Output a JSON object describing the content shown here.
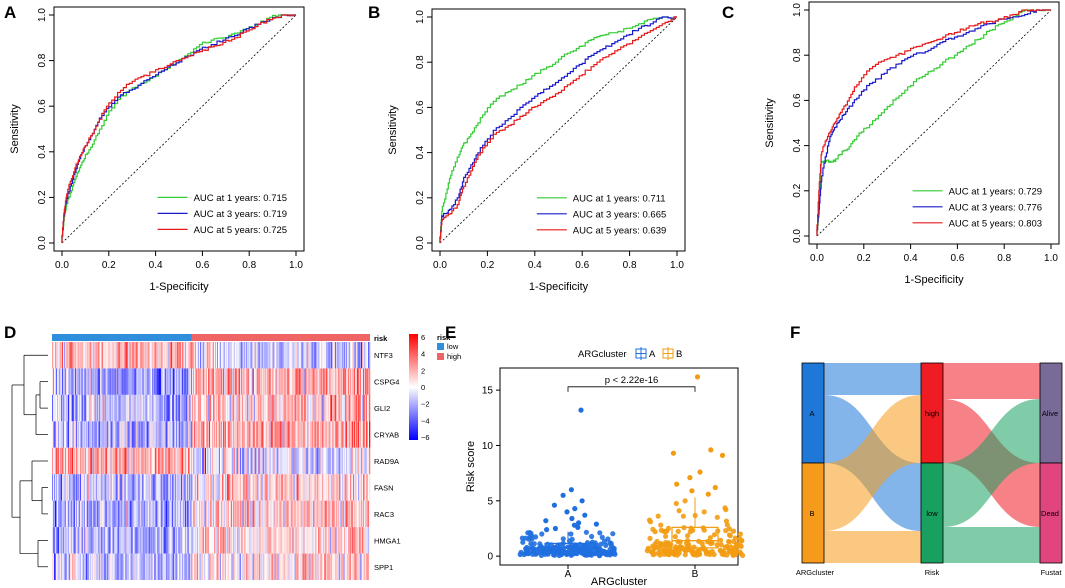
{
  "chart_data": [
    {
      "panel": "A",
      "type": "line",
      "xlabel": "1-Specificity",
      "ylabel": "Sensitivity",
      "xlim": [
        0,
        1
      ],
      "ylim": [
        0,
        1
      ],
      "xticks": [
        "0.0",
        "0.2",
        "0.4",
        "0.6",
        "0.8",
        "1.0"
      ],
      "yticks": [
        "0.0",
        "0.2",
        "0.4",
        "0.6",
        "0.8",
        "1.0"
      ],
      "legend_position": "bottom-right",
      "series": [
        {
          "name": "AUC at 1 years: 0.715",
          "color": "#33cc33",
          "x": [
            0,
            0.01,
            0.02,
            0.04,
            0.06,
            0.08,
            0.1,
            0.13,
            0.16,
            0.2,
            0.25,
            0.3,
            0.35,
            0.4,
            0.45,
            0.5,
            0.55,
            0.6,
            0.65,
            0.7,
            0.75,
            0.8,
            0.85,
            0.9,
            0.95,
            1.0
          ],
          "y": [
            0,
            0.1,
            0.16,
            0.22,
            0.28,
            0.33,
            0.37,
            0.42,
            0.48,
            0.56,
            0.63,
            0.67,
            0.7,
            0.73,
            0.76,
            0.8,
            0.83,
            0.87,
            0.89,
            0.9,
            0.92,
            0.94,
            0.96,
            0.99,
            1.0,
            1.0
          ]
        },
        {
          "name": "AUC at 3 years: 0.719",
          "color": "#1a1acc",
          "x": [
            0,
            0.01,
            0.02,
            0.04,
            0.06,
            0.08,
            0.1,
            0.13,
            0.16,
            0.2,
            0.25,
            0.3,
            0.35,
            0.4,
            0.45,
            0.5,
            0.55,
            0.6,
            0.65,
            0.7,
            0.75,
            0.8,
            0.85,
            0.9,
            0.95,
            1.0
          ],
          "y": [
            0,
            0.12,
            0.18,
            0.25,
            0.31,
            0.37,
            0.42,
            0.47,
            0.53,
            0.59,
            0.64,
            0.67,
            0.7,
            0.73,
            0.76,
            0.79,
            0.82,
            0.85,
            0.87,
            0.89,
            0.91,
            0.94,
            0.96,
            0.98,
            1.0,
            1.0
          ]
        },
        {
          "name": "AUC at 5 years: 0.725",
          "color": "#e61a1a",
          "x": [
            0,
            0.01,
            0.02,
            0.04,
            0.06,
            0.08,
            0.1,
            0.13,
            0.16,
            0.2,
            0.25,
            0.3,
            0.35,
            0.4,
            0.45,
            0.5,
            0.55,
            0.6,
            0.65,
            0.7,
            0.75,
            0.8,
            0.85,
            0.9,
            0.95,
            1.0
          ],
          "y": [
            0,
            0.13,
            0.2,
            0.27,
            0.33,
            0.38,
            0.42,
            0.47,
            0.53,
            0.6,
            0.66,
            0.7,
            0.73,
            0.75,
            0.77,
            0.8,
            0.82,
            0.84,
            0.86,
            0.88,
            0.9,
            0.93,
            0.96,
            0.98,
            1.0,
            1.0
          ]
        }
      ]
    },
    {
      "panel": "B",
      "type": "line",
      "xlabel": "1-Specificity",
      "ylabel": "Sensitivity",
      "xlim": [
        0,
        1
      ],
      "ylim": [
        0,
        1
      ],
      "xticks": [
        "0.0",
        "0.2",
        "0.4",
        "0.6",
        "0.8",
        "1.0"
      ],
      "yticks": [
        "0.0",
        "0.2",
        "0.4",
        "0.6",
        "0.8",
        "1.0"
      ],
      "legend_position": "bottom-right",
      "series": [
        {
          "name": "AUC at 1 years: 0.711",
          "color": "#33cc33",
          "x": [
            0,
            0.01,
            0.03,
            0.05,
            0.08,
            0.1,
            0.13,
            0.16,
            0.2,
            0.25,
            0.3,
            0.35,
            0.4,
            0.45,
            0.5,
            0.55,
            0.6,
            0.65,
            0.7,
            0.75,
            0.8,
            0.85,
            0.9,
            0.95,
            1.0
          ],
          "y": [
            0,
            0.14,
            0.22,
            0.3,
            0.38,
            0.43,
            0.47,
            0.52,
            0.58,
            0.64,
            0.67,
            0.7,
            0.74,
            0.77,
            0.8,
            0.84,
            0.87,
            0.9,
            0.92,
            0.93,
            0.95,
            0.97,
            0.99,
            1.0,
            1.0
          ]
        },
        {
          "name": "AUC at 3 years: 0.665",
          "color": "#1a1acc",
          "x": [
            0,
            0.01,
            0.03,
            0.05,
            0.08,
            0.1,
            0.13,
            0.16,
            0.2,
            0.25,
            0.3,
            0.35,
            0.4,
            0.45,
            0.5,
            0.55,
            0.6,
            0.65,
            0.7,
            0.75,
            0.8,
            0.85,
            0.9,
            0.95,
            1.0
          ],
          "y": [
            0,
            0.12,
            0.13,
            0.15,
            0.2,
            0.27,
            0.33,
            0.39,
            0.45,
            0.51,
            0.55,
            0.6,
            0.64,
            0.68,
            0.71,
            0.75,
            0.79,
            0.83,
            0.86,
            0.89,
            0.92,
            0.95,
            0.97,
            1.0,
            1.0
          ]
        },
        {
          "name": "AUC at 5 years: 0.639",
          "color": "#e61a1a",
          "x": [
            0,
            0.01,
            0.03,
            0.05,
            0.08,
            0.1,
            0.13,
            0.16,
            0.2,
            0.25,
            0.3,
            0.35,
            0.4,
            0.45,
            0.5,
            0.55,
            0.6,
            0.65,
            0.7,
            0.75,
            0.8,
            0.85,
            0.9,
            0.95,
            1.0
          ],
          "y": [
            0,
            0.1,
            0.12,
            0.13,
            0.17,
            0.24,
            0.3,
            0.37,
            0.43,
            0.49,
            0.52,
            0.56,
            0.6,
            0.63,
            0.66,
            0.7,
            0.74,
            0.78,
            0.82,
            0.85,
            0.88,
            0.91,
            0.94,
            0.97,
            1.0
          ]
        }
      ]
    },
    {
      "panel": "C",
      "type": "line",
      "xlabel": "1-Specificity",
      "ylabel": "Sensitivity",
      "xlim": [
        0,
        1
      ],
      "ylim": [
        0,
        1
      ],
      "xticks": [
        "0.0",
        "0.2",
        "0.4",
        "0.6",
        "0.8",
        "1.0"
      ],
      "yticks": [
        "0.0",
        "0.2",
        "0.4",
        "0.6",
        "0.8",
        "1.0"
      ],
      "legend_position": "bottom-right",
      "series": [
        {
          "name": "AUC at 1 years: 0.729",
          "color": "#33cc33",
          "x": [
            0,
            0.01,
            0.02,
            0.04,
            0.06,
            0.08,
            0.1,
            0.13,
            0.16,
            0.2,
            0.25,
            0.3,
            0.35,
            0.4,
            0.45,
            0.5,
            0.55,
            0.6,
            0.65,
            0.7,
            0.75,
            0.8,
            0.85,
            0.9,
            0.95,
            1.0
          ],
          "y": [
            0,
            0.1,
            0.33,
            0.33,
            0.33,
            0.33,
            0.36,
            0.38,
            0.42,
            0.46,
            0.51,
            0.56,
            0.61,
            0.66,
            0.7,
            0.73,
            0.77,
            0.8,
            0.84,
            0.87,
            0.91,
            0.94,
            0.97,
            1.0,
            1.0,
            1.0
          ]
        },
        {
          "name": "AUC at 3 years: 0.776",
          "color": "#1a1acc",
          "x": [
            0,
            0.01,
            0.02,
            0.04,
            0.06,
            0.08,
            0.1,
            0.13,
            0.16,
            0.2,
            0.25,
            0.3,
            0.35,
            0.4,
            0.45,
            0.5,
            0.55,
            0.6,
            0.65,
            0.7,
            0.75,
            0.8,
            0.85,
            0.9,
            0.95,
            1.0
          ],
          "y": [
            0,
            0.12,
            0.24,
            0.35,
            0.44,
            0.48,
            0.51,
            0.55,
            0.59,
            0.64,
            0.68,
            0.72,
            0.76,
            0.79,
            0.81,
            0.83,
            0.86,
            0.88,
            0.9,
            0.92,
            0.94,
            0.96,
            0.97,
            0.98,
            1.0,
            1.0
          ]
        },
        {
          "name": "AUC at 5 years: 0.803",
          "color": "#e61a1a",
          "x": [
            0,
            0.01,
            0.02,
            0.04,
            0.06,
            0.08,
            0.1,
            0.13,
            0.16,
            0.2,
            0.25,
            0.3,
            0.35,
            0.4,
            0.45,
            0.5,
            0.55,
            0.6,
            0.65,
            0.7,
            0.75,
            0.8,
            0.85,
            0.9,
            0.95,
            1.0
          ],
          "y": [
            0,
            0.2,
            0.36,
            0.42,
            0.46,
            0.5,
            0.54,
            0.58,
            0.64,
            0.7,
            0.75,
            0.78,
            0.8,
            0.82,
            0.84,
            0.86,
            0.88,
            0.9,
            0.92,
            0.94,
            0.95,
            0.96,
            0.98,
            1.0,
            1.0,
            1.0
          ]
        }
      ]
    },
    {
      "panel": "D",
      "type": "heatmap",
      "annotation_title": "risk",
      "annotation_groups": [
        {
          "name": "low",
          "color": "#2f8fdc",
          "fraction": 0.44
        },
        {
          "name": "high",
          "color": "#ef6464",
          "fraction": 0.56
        }
      ],
      "rows": [
        "NTF3",
        "CSPG4",
        "GLI2",
        "CRYAB",
        "RAD9A",
        "FASN",
        "RAC3",
        "HMGA1",
        "SPP1"
      ],
      "row_mean_low": [
        0.8,
        -0.9,
        -0.7,
        -0.8,
        0.9,
        -0.7,
        -0.8,
        -0.9,
        -0.6
      ],
      "row_mean_high": [
        -0.5,
        0.9,
        0.6,
        0.9,
        -0.4,
        0.5,
        0.6,
        0.5,
        0.3
      ],
      "color_scale": {
        "min": -6,
        "max": 6,
        "colors": [
          "#0000ff",
          "#ffffff",
          "#ff0000"
        ]
      },
      "colorbar_ticks": [
        "6",
        "4",
        "2",
        "0",
        "−2",
        "−4",
        "−6"
      ]
    },
    {
      "panel": "E",
      "type": "scatter",
      "legend_title": "ARGcluster",
      "groups": [
        {
          "name": "A",
          "color": "#1f6fe0",
          "n": 220,
          "q1": 0.45,
          "median": 0.75,
          "q3": 1.15,
          "whisker_low": 0.05,
          "whisker_high": 2.2,
          "outliers": [
            13.2,
            6.0,
            5.5,
            5.0,
            4.6,
            4.3,
            4.0,
            3.7,
            3.4,
            3.2,
            3.0,
            2.9,
            2.8,
            2.6,
            2.5,
            2.4
          ]
        },
        {
          "name": "B",
          "color": "#f39c12",
          "n": 180,
          "q1": 0.75,
          "median": 1.4,
          "q3": 2.6,
          "whisker_low": 0.05,
          "whisker_high": 5.3,
          "outliers": [
            16.2,
            9.6,
            9.3,
            9.1,
            7.6,
            7.1,
            6.5,
            6.2,
            5.9,
            5.6
          ]
        }
      ],
      "xlabel": "ARGcluster",
      "ylabel": "Risk score",
      "ylim": [
        -0.8,
        17
      ],
      "yticks": [
        "0",
        "5",
        "10",
        "15"
      ],
      "annotation": "p < 2.22e-16"
    },
    {
      "panel": "F",
      "type": "sankey",
      "axes": [
        "ARGcluster",
        "Risk",
        "Fustat"
      ],
      "nodes": {
        "ARGcluster": [
          {
            "name": "A",
            "color": "#1f78d8",
            "value": 0.5
          },
          {
            "name": "B",
            "color": "#f59a1a",
            "value": 0.5
          }
        ],
        "Risk": [
          {
            "name": "high",
            "color": "#ef1c24",
            "value": 0.5
          },
          {
            "name": "low",
            "color": "#18a060",
            "value": 0.5
          }
        ],
        "Fustat": [
          {
            "name": "Alive",
            "color": "#7a6a98",
            "value": 0.5
          },
          {
            "name": "Dead",
            "color": "#e0457e",
            "value": 0.5
          }
        ]
      },
      "flows_1": [
        [
          "A",
          "high",
          0.16
        ],
        [
          "A",
          "low",
          0.34
        ],
        [
          "B",
          "high",
          0.34
        ],
        [
          "B",
          "low",
          0.16
        ]
      ],
      "flows_2": [
        [
          "high",
          "Alive",
          0.18
        ],
        [
          "high",
          "Dead",
          0.32
        ],
        [
          "low",
          "Alive",
          0.32
        ],
        [
          "low",
          "Dead",
          0.18
        ]
      ]
    }
  ]
}
